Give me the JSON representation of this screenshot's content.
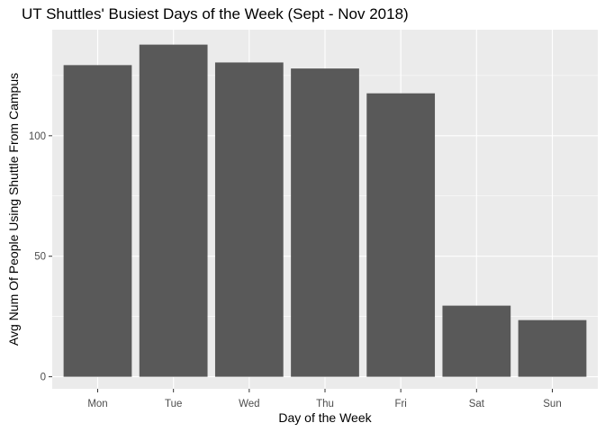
{
  "chart_data": {
    "type": "bar",
    "title": "UT Shuttles' Busiest Days of the Week (Sept - Nov 2018)",
    "xlabel": "Day of the Week",
    "ylabel": "Avg Num Of People Using Shuttle From Campus",
    "categories": [
      "Mon",
      "Tue",
      "Wed",
      "Thu",
      "Fri",
      "Sat",
      "Sun"
    ],
    "values": [
      129.3,
      137.8,
      130.4,
      127.9,
      117.6,
      29.5,
      23.5
    ],
    "ylim": [
      -5,
      144
    ],
    "yticks": [
      0,
      50,
      100
    ],
    "grid": true,
    "colors": {
      "panel": "#EBEBEB",
      "grid_major": "#FFFFFF",
      "bar": "#595959"
    }
  }
}
